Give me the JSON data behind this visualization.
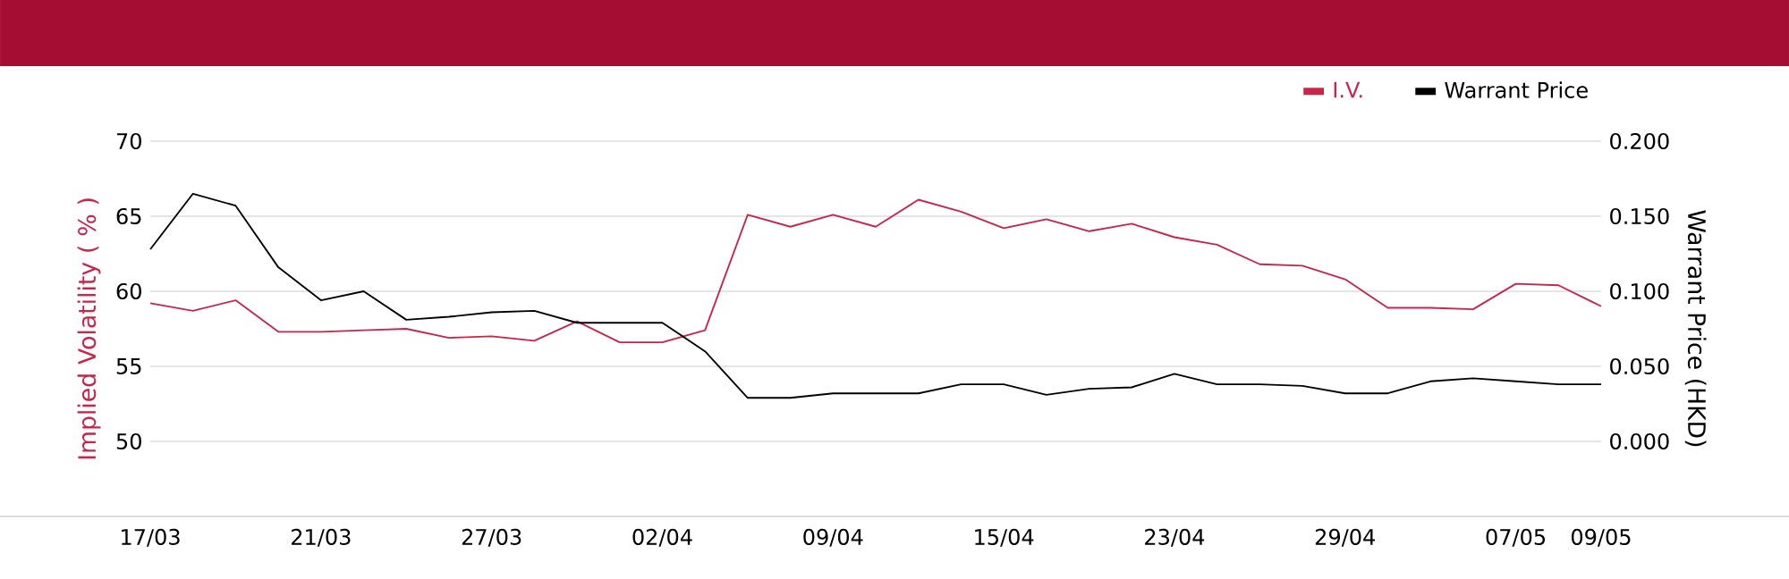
{
  "chart_data": {
    "type": "line",
    "categories": [
      "17/03",
      null,
      null,
      null,
      "21/03",
      null,
      null,
      null,
      "27/03",
      null,
      null,
      null,
      "02/04",
      null,
      null,
      null,
      "09/04",
      null,
      null,
      null,
      "15/04",
      null,
      null,
      null,
      "23/04",
      null,
      null,
      null,
      "29/04",
      null,
      null,
      null,
      "07/05",
      null,
      "09/05"
    ],
    "series": [
      {
        "name": "I.V.",
        "color": "#c8254a",
        "values": [
          59.2,
          58.7,
          59.4,
          57.3,
          57.3,
          57.4,
          57.5,
          56.9,
          57.0,
          56.7,
          58.0,
          56.6,
          56.6,
          57.4,
          65.1,
          64.3,
          65.1,
          64.3,
          66.1,
          65.3,
          64.2,
          64.8,
          64.0,
          64.5,
          63.6,
          63.1,
          61.8,
          61.7,
          60.8,
          58.9,
          58.9,
          58.8,
          60.5,
          60.4,
          59.0
        ]
      },
      {
        "name": "Warrant Price",
        "color": "#000000",
        "axis": "y2",
        "values": [
          0.128,
          0.165,
          0.157,
          0.116,
          0.094,
          0.1,
          0.081,
          0.083,
          0.086,
          0.087,
          0.079,
          0.079,
          0.079,
          0.06,
          0.029,
          0.029,
          0.032,
          0.032,
          0.032,
          0.038,
          0.038,
          0.031,
          0.035,
          0.036,
          0.045,
          0.038,
          0.038,
          0.037,
          0.032,
          0.032,
          0.04,
          0.042,
          0.04,
          0.038,
          0.038
        ]
      }
    ],
    "ylabel": "Implied Volatility ( % )",
    "y2label": "Warrant Price (HKD)",
    "ylim": [
      45,
      70
    ],
    "yticks": [
      50,
      55,
      60,
      65,
      70
    ],
    "y2lim": [
      -0.05,
      0.2
    ],
    "y2ticks": [
      {
        "value": 0,
        "label": "0.000"
      },
      {
        "value": 0.05,
        "label": "0.050"
      },
      {
        "value": 0.1,
        "label": "0.100"
      },
      {
        "value": 0.15,
        "label": "0.150"
      },
      {
        "value": 0.2,
        "label": "0.200"
      }
    ],
    "grid": "y",
    "legend": "top right",
    "marker": "none",
    "line_style": "solid"
  }
}
